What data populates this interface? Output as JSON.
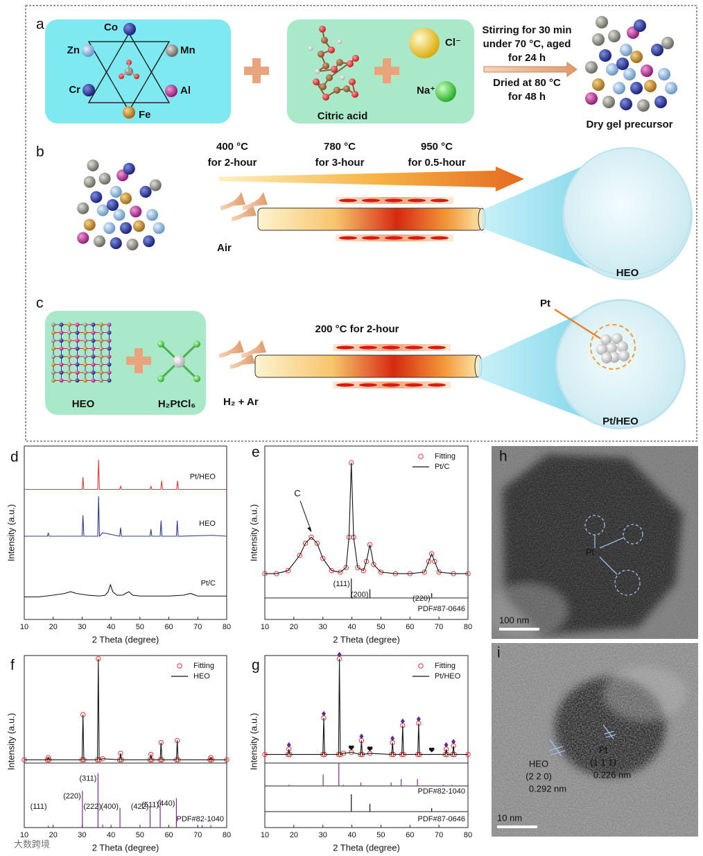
{
  "schematic": {
    "panel_a": {
      "label": "a",
      "elements": [
        "Co",
        "Zn",
        "Mn",
        "Cr",
        "Al",
        "Fe"
      ],
      "reagents": [
        "Citric acid",
        "Cl⁻",
        "Na⁺"
      ],
      "conditions_above": [
        "Stirring for 30 min",
        "under 70 °C, aged",
        "for 24 h"
      ],
      "conditions_below": [
        "Dried at 80 °C",
        "for 48 h"
      ],
      "product": "Dry gel precursor"
    },
    "panel_b": {
      "label": "b",
      "stages": [
        {
          "temperature": "400 °C",
          "duration": "for 2-hour"
        },
        {
          "temperature": "780 °C",
          "duration": "for 3-hour"
        },
        {
          "temperature": "950 °C",
          "duration": "for 0.5-hour"
        }
      ],
      "atmosphere": "Air",
      "product": "HEO"
    },
    "panel_c": {
      "label": "c",
      "reactants": [
        "HEO",
        "H₂PtCl₆"
      ],
      "condition": "200 °C for 2-hour",
      "atmosphere": "H₂ + Ar",
      "inset_label": "Pt",
      "product": "Pt/HEO"
    }
  },
  "chart_data": [
    {
      "type": "line",
      "label": "d",
      "x_label": "2 Theta (degree)",
      "y_label": "Intensity (a.u.)",
      "xlim": [
        10,
        80
      ],
      "xticks": [
        10,
        20,
        30,
        40,
        50,
        60,
        70,
        80
      ],
      "ylim": [
        0,
        100
      ],
      "series": [
        {
          "name": "Pt/HEO",
          "color": "#e53935",
          "x": [
            10,
            30,
            30.3,
            30.6,
            35.4,
            35.7,
            36,
            43,
            43.3,
            43.6,
            53.5,
            53.8,
            54.1,
            57.2,
            57.5,
            57.8,
            62.7,
            63,
            63.3,
            80
          ],
          "values": [
            75,
            75,
            82,
            75,
            75,
            92,
            75,
            75,
            77,
            75,
            75,
            77,
            75,
            75,
            80,
            75,
            75,
            80,
            75,
            75
          ]
        },
        {
          "name": "HEO",
          "color": "#2e3b8f",
          "x": [
            10,
            18,
            18.3,
            18.6,
            30,
            30.3,
            30.6,
            35.4,
            35.7,
            36,
            37.1,
            43,
            43.3,
            43.6,
            53.5,
            53.8,
            54.1,
            57,
            57.3,
            57.6,
            62.6,
            62.9,
            63.2,
            75,
            80
          ],
          "values": [
            48,
            48,
            50,
            48,
            48,
            60,
            48,
            48,
            71,
            48,
            50,
            48,
            53,
            48,
            48,
            52,
            48,
            48,
            57,
            48,
            48,
            57,
            48,
            48.5,
            48
          ]
        },
        {
          "name": "Pt/C",
          "color": "#111111",
          "x": [
            10,
            15,
            20,
            24,
            26,
            28,
            32,
            36,
            38,
            39,
            39.8,
            40.6,
            42,
            44,
            45,
            46.2,
            47.5,
            50,
            60,
            65,
            67.5,
            70,
            75,
            80
          ],
          "values": [
            13,
            13,
            14,
            15,
            16,
            15,
            14,
            13.5,
            14,
            16,
            20,
            16,
            14,
            14,
            15,
            16,
            14,
            13.5,
            13.5,
            14,
            15,
            13.5,
            13.5,
            13.5
          ]
        }
      ]
    },
    {
      "type": "line",
      "label": "e",
      "x_label": "2 Theta (degree)",
      "y_label": "Intensity (a.u.)",
      "xlim": [
        10,
        80
      ],
      "xticks": [
        10,
        20,
        30,
        40,
        50,
        60,
        70,
        80
      ],
      "ylim": [
        0,
        100
      ],
      "x": [
        10,
        14,
        18,
        22,
        24,
        26,
        28,
        30,
        33,
        36,
        38,
        39,
        39.8,
        40.6,
        42,
        44,
        45,
        46.2,
        47.5,
        50,
        55,
        60,
        65,
        66.5,
        67.5,
        68.5,
        70,
        75,
        80
      ],
      "series": [
        {
          "name": "Fitting",
          "color": "#e53935",
          "marker": "circle",
          "values": [
            16,
            16,
            18,
            28,
            36,
            40,
            36,
            26,
            18,
            17,
            20,
            40,
            89,
            40,
            20,
            18,
            24,
            35,
            22,
            17,
            16,
            16,
            17,
            24,
            29,
            24,
            17,
            16,
            16
          ]
        },
        {
          "name": "Pt/C",
          "color": "#111111",
          "values": [
            16,
            16,
            18,
            28,
            36,
            40,
            36,
            26,
            18,
            17,
            20,
            40,
            89,
            40,
            20,
            18,
            24,
            35,
            22,
            17,
            16,
            16,
            17,
            24,
            29,
            24,
            17,
            16,
            16
          ]
        }
      ],
      "annotations": [
        {
          "text": "C",
          "x": 26,
          "y": 42
        }
      ],
      "references": [
        {
          "label": "PDF#87-0646",
          "color": "#111111",
          "ylim": [
            0,
            100
          ],
          "x": [
            39.8,
            46.2,
            67.5
          ],
          "values": [
            100,
            45,
            25
          ],
          "peak_labels": [
            "(111)",
            "(200)",
            "(220)"
          ]
        }
      ]
    },
    {
      "type": "line",
      "label": "f",
      "x_label": "2 Theta (degree)",
      "y_label": "Intensity (a.u.)",
      "xlim": [
        10,
        80
      ],
      "xticks": [
        10,
        20,
        30,
        40,
        50,
        60,
        70,
        80
      ],
      "ylim": [
        0,
        100
      ],
      "x": [
        10,
        18,
        18.3,
        18.6,
        30,
        30.3,
        30.6,
        35.3,
        35.6,
        35.9,
        37.1,
        43,
        43.3,
        43.6,
        53.5,
        53.8,
        54.1,
        57,
        57.3,
        57.6,
        62.6,
        62.9,
        63.2,
        74.2,
        74.5,
        74.8,
        80
      ],
      "series": [
        {
          "name": "Fitting",
          "color": "#e53935",
          "marker": "circle",
          "values": [
            3,
            3,
            5,
            3,
            3,
            45,
            3,
            3,
            97,
            3,
            4,
            3,
            9,
            3,
            3,
            8,
            3,
            3,
            19,
            3,
            3,
            21,
            3,
            3,
            5,
            3,
            3
          ]
        },
        {
          "name": "HEO",
          "color": "#111111",
          "values": [
            3,
            3,
            5,
            3,
            3,
            45,
            3,
            3,
            97,
            3,
            4,
            3,
            9,
            3,
            3,
            8,
            3,
            3,
            19,
            3,
            3,
            21,
            3,
            3,
            5,
            3,
            3
          ]
        }
      ],
      "references": [
        {
          "label": "PDF#82-1040",
          "color": "#7b2a8c",
          "ylim": [
            0,
            100
          ],
          "x": [
            18.3,
            30.1,
            35.5,
            37.1,
            43.1,
            53.5,
            57,
            62.6,
            71.5,
            74.5
          ],
          "values": [
            3,
            60,
            89,
            5,
            32,
            35,
            46,
            48,
            4,
            4
          ],
          "peak_labels": [
            "(111)",
            "(220)",
            "(311)",
            "(222)",
            "(400)",
            "(422)",
            "(511)",
            "(440)",
            null,
            null
          ]
        }
      ]
    },
    {
      "type": "line",
      "label": "g",
      "x_label": "2 Theta (degree)",
      "y_label": "Intensity (a.u.)",
      "xlim": [
        10,
        80
      ],
      "xticks": [
        10,
        20,
        30,
        40,
        50,
        60,
        70,
        80
      ],
      "ylim": [
        0,
        100
      ],
      "x": [
        10,
        18,
        18.3,
        18.6,
        30,
        30.3,
        30.6,
        35.4,
        35.7,
        36,
        37.1,
        39.8,
        43,
        43.3,
        43.6,
        46.2,
        53.7,
        54,
        54.3,
        57.2,
        57.5,
        57.8,
        62.7,
        63,
        63.3,
        72.2,
        72.5,
        72.8,
        74.7,
        75,
        75.3,
        80
      ],
      "series": [
        {
          "name": "Fitting",
          "color": "#e53935",
          "marker": "circle",
          "values": [
            8,
            8,
            13,
            8,
            8,
            42,
            8,
            8,
            97,
            8,
            9,
            10,
            8,
            21,
            8,
            9,
            8,
            19,
            8,
            8,
            35,
            8,
            8,
            37,
            8,
            8,
            13,
            8,
            8,
            16,
            8,
            8
          ]
        },
        {
          "name": "Pt/HEO",
          "color": "#111111",
          "values": [
            8,
            8,
            13,
            8,
            8,
            42,
            8,
            8,
            97,
            8,
            9,
            10,
            8,
            21,
            8,
            9,
            8,
            19,
            8,
            8,
            35,
            8,
            8,
            37,
            8,
            8,
            13,
            8,
            8,
            16,
            8,
            8
          ]
        }
      ],
      "peak_markers": [
        {
          "symbol": "diamond",
          "color": "#5b2d90",
          "x": [
            18.3,
            30.3,
            35.7,
            43.3,
            54,
            57.5,
            63,
            72.5,
            75
          ]
        },
        {
          "symbol": "heart",
          "color": "#111111",
          "x": [
            39.8,
            46.2,
            67.5
          ]
        }
      ],
      "references": [
        {
          "label": "PDF#82-1040",
          "color": "#7b2a8c",
          "ylim": [
            0,
            100
          ],
          "x": [
            18.3,
            30.1,
            35.5,
            37.1,
            43.1,
            53.5,
            57,
            62.6,
            71.5,
            74.5
          ],
          "values": [
            5,
            50,
            100,
            5,
            15,
            15,
            30,
            30,
            5,
            5
          ]
        },
        {
          "label": "PDF#87-0646",
          "color": "#111111",
          "ylim": [
            0,
            100
          ],
          "x": [
            39.8,
            46.2,
            67.5
          ],
          "values": [
            100,
            45,
            20
          ]
        }
      ]
    }
  ],
  "micrographs": {
    "h": {
      "label": "h",
      "scale_bar": "100 nm",
      "annotation": "Pt"
    },
    "i": {
      "label": "i",
      "scale_bar": "10 nm",
      "annotations": [
        {
          "phase": "HEO",
          "plane": "(2 2 0)",
          "spacing": "0.292 nm"
        },
        {
          "phase": "Pt",
          "plane": "(1 1 1)",
          "spacing": "0.226 nm"
        }
      ]
    }
  },
  "watermark": "大数跨境"
}
